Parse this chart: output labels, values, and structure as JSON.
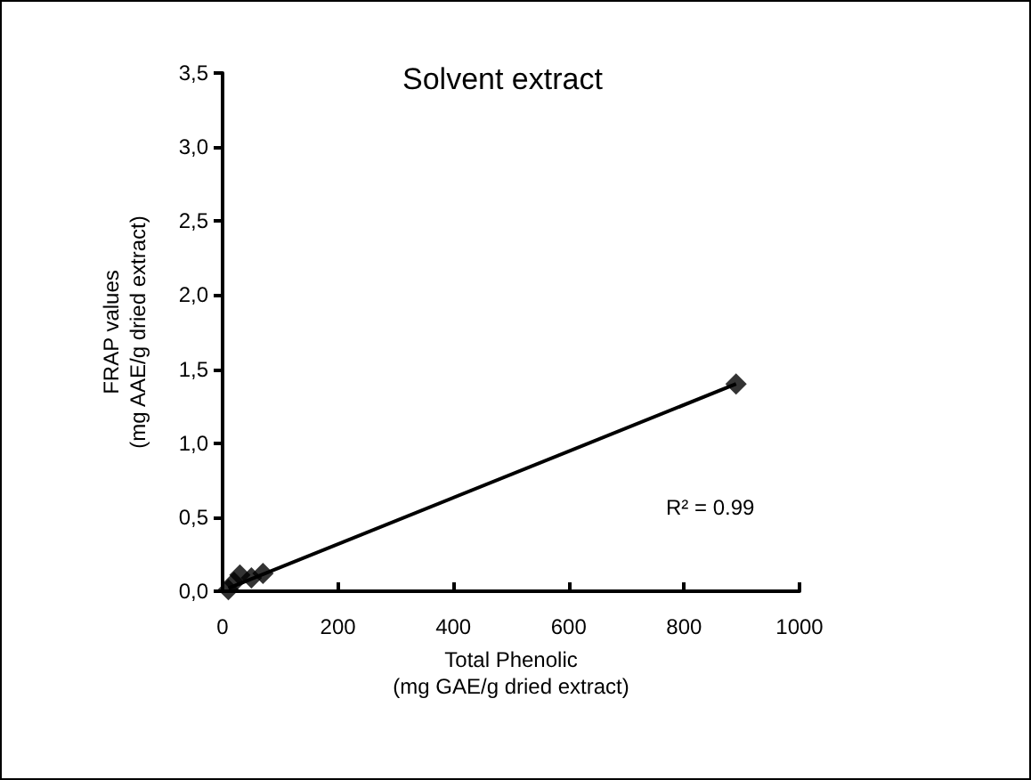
{
  "chart_data": {
    "type": "scatter",
    "title": "Solvent extract",
    "xlabel": "Total Phenolic\n(mg GAE/g dried extract)",
    "ylabel": "FRAP values\n(mg AAE/g dried extract)",
    "series": [
      {
        "color": "#000000",
        "x": [
          10,
          20,
          30,
          50,
          70,
          890
        ],
        "values": [
          0.01,
          0.06,
          0.11,
          0.09,
          0.12,
          1.4
        ]
      },
      {
        "type": "line",
        "color": "#000000",
        "x": [
          10,
          890
        ],
        "values": [
          0.02,
          1.4
        ],
        "marker": "none"
      }
    ],
    "annotations": [
      "R² = 0.99"
    ],
    "xlim": [
      0,
      1000
    ],
    "xticks": [
      0,
      200,
      400,
      600,
      800,
      1000
    ],
    "ylim": [
      0,
      3.5
    ],
    "yticks": [
      {
        "value": 0,
        "label": "0,0"
      },
      {
        "value": 0.5,
        "label": "0,5"
      },
      {
        "value": 1,
        "label": "1,0"
      },
      {
        "value": 1.5,
        "label": "1,5"
      },
      {
        "value": 2,
        "label": "2,0"
      },
      {
        "value": 2.5,
        "label": "2,5"
      },
      {
        "value": 3,
        "label": "3,0"
      },
      {
        "value": 3.5,
        "label": "3,5"
      }
    ],
    "marker": "diamond",
    "grid": false
  }
}
